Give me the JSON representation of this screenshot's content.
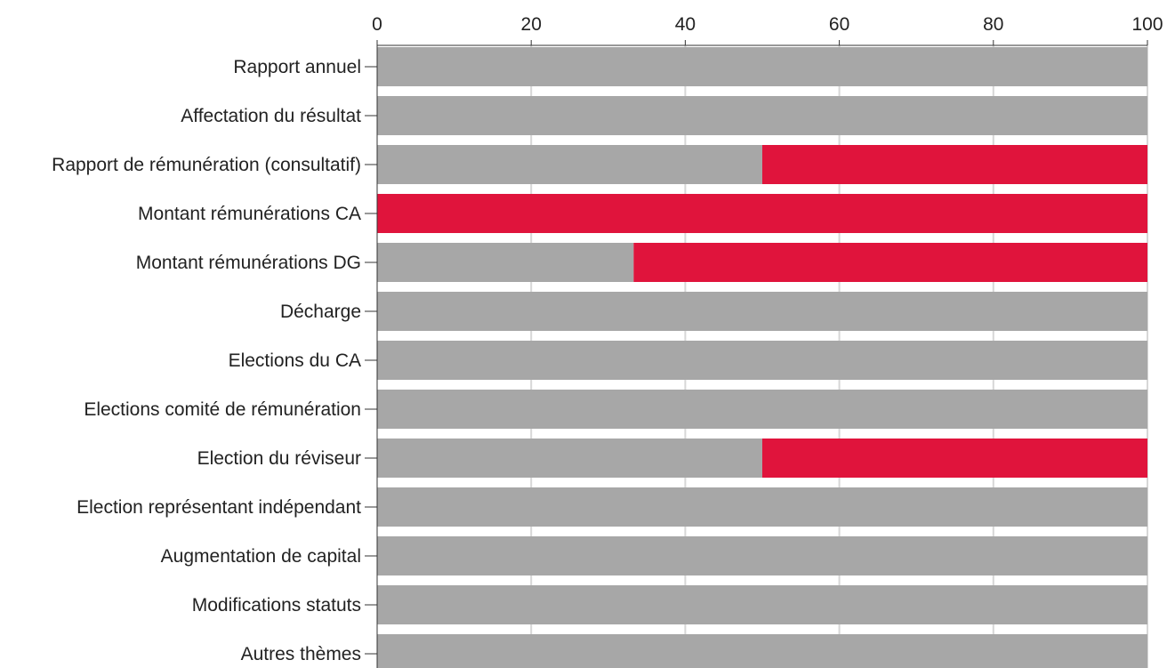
{
  "chart_data": {
    "type": "bar",
    "orientation": "horizontal",
    "stacked": true,
    "xlim": [
      0,
      100
    ],
    "ticks": [
      0,
      20,
      40,
      60,
      80,
      100
    ],
    "categories": [
      "Rapport annuel",
      "Affectation du résultat",
      "Rapport de rémunération (consultatif)",
      "Montant rémunérations CA",
      "Montant rémunérations DG",
      "Décharge",
      "Elections du CA",
      "Elections comité de rémunération",
      "Election du réviseur",
      "Election représentant indépendant",
      "Augmentation de capital",
      "Modifications statuts",
      "Autres thèmes"
    ],
    "series": [
      {
        "color": "#a7a7a7",
        "values": [
          100,
          100,
          50,
          0,
          33.3,
          100,
          100,
          100,
          50,
          100,
          100,
          100,
          100
        ]
      },
      {
        "color": "#e0143c",
        "values": [
          0,
          0,
          50,
          100,
          66.7,
          0,
          0,
          0,
          50,
          0,
          0,
          0,
          0
        ]
      }
    ],
    "grid": true,
    "legend": "none"
  }
}
